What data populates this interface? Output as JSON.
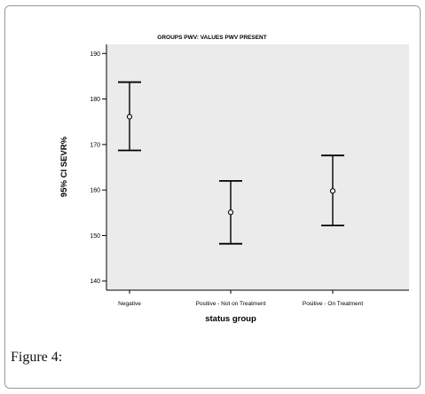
{
  "figure": {
    "caption": "Figure 4:"
  },
  "chart_data": {
    "type": "errorbar",
    "title": "GROUPS PWV: VALUES PWV PRESENT",
    "xlabel": "status group",
    "ylabel": "95% CI SEVR%",
    "ylim": [
      138,
      192
    ],
    "yticks": [
      140,
      150,
      160,
      170,
      180,
      190
    ],
    "categories": [
      "Negative",
      "Positive - Not on Treatment",
      "Positive - On Treatment"
    ],
    "means": [
      176.1,
      155.1,
      159.8
    ],
    "ci_lower": [
      168.7,
      148.2,
      152.2
    ],
    "ci_upper": [
      183.7,
      162.0,
      167.6
    ],
    "grid": false,
    "plot_background": "#ebebeb",
    "marker": "open-circle",
    "colors": {
      "bar": "#000000",
      "axis": "#000000"
    }
  }
}
